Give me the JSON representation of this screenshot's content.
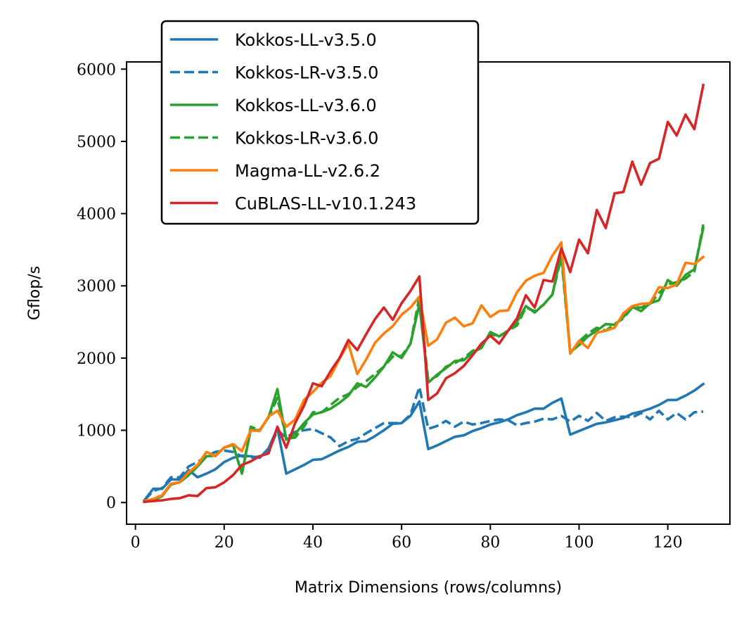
{
  "chart_data": {
    "type": "line",
    "title": "",
    "xlabel": "Matrix Dimensions (rows/columns)",
    "ylabel": "Gflop/s",
    "xlim": [
      -2,
      134
    ],
    "ylim": [
      -300,
      6100
    ],
    "xticks": [
      0,
      20,
      40,
      60,
      80,
      100,
      120
    ],
    "yticks": [
      0,
      1000,
      2000,
      3000,
      4000,
      5000,
      6000
    ],
    "grid": false,
    "legend_position": "top-left (above plot)",
    "x": [
      2,
      4,
      6,
      8,
      10,
      12,
      14,
      16,
      18,
      20,
      22,
      24,
      26,
      28,
      30,
      32,
      34,
      36,
      38,
      40,
      42,
      44,
      46,
      48,
      50,
      52,
      54,
      56,
      58,
      60,
      62,
      64,
      66,
      68,
      70,
      72,
      74,
      76,
      78,
      80,
      82,
      84,
      86,
      88,
      90,
      92,
      94,
      96,
      98,
      100,
      102,
      104,
      106,
      108,
      110,
      112,
      114,
      116,
      118,
      120,
      122,
      124,
      126,
      128
    ],
    "series": [
      {
        "name": "Kokkos-LL-v3.5.0",
        "color": "#1f77b4",
        "dash": "solid",
        "values": [
          30,
          190,
          190,
          320,
          320,
          450,
          350,
          400,
          460,
          560,
          620,
          650,
          640,
          620,
          750,
          1030,
          400,
          460,
          520,
          590,
          600,
          660,
          720,
          770,
          840,
          850,
          920,
          1000,
          1090,
          1100,
          1200,
          1400,
          740,
          790,
          850,
          910,
          930,
          990,
          1030,
          1080,
          1110,
          1150,
          1210,
          1250,
          1300,
          1300,
          1380,
          1440,
          940,
          990,
          1040,
          1090,
          1110,
          1140,
          1170,
          1230,
          1260,
          1300,
          1350,
          1420,
          1420,
          1480,
          1550,
          1640
        ]
      },
      {
        "name": "Kokkos-LR-v3.5.0",
        "color": "#1f77b4",
        "dash": "dashed",
        "values": [
          30,
          160,
          200,
          350,
          350,
          500,
          560,
          640,
          700,
          720,
          700,
          640,
          620,
          640,
          700,
          1000,
          900,
          980,
          1000,
          1020,
          960,
          900,
          780,
          850,
          880,
          960,
          1030,
          1100,
          1100,
          1100,
          1220,
          1600,
          1020,
          1060,
          1130,
          1050,
          1120,
          1080,
          1100,
          1130,
          1150,
          1140,
          1070,
          1100,
          1120,
          1160,
          1150,
          1200,
          1120,
          1200,
          1130,
          1240,
          1130,
          1180,
          1190,
          1180,
          1240,
          1150,
          1270,
          1150,
          1240,
          1150,
          1250,
          1260
        ]
      },
      {
        "name": "Kokkos-LL-v3.6.0",
        "color": "#2ca02c",
        "dash": "solid",
        "values": [
          10,
          30,
          90,
          250,
          280,
          380,
          500,
          640,
          650,
          760,
          800,
          400,
          1010,
          1000,
          1180,
          1570,
          870,
          950,
          1100,
          1220,
          1250,
          1300,
          1380,
          1480,
          1650,
          1600,
          1730,
          1880,
          2080,
          2000,
          2200,
          2750,
          1660,
          1770,
          1860,
          1960,
          1970,
          2080,
          2140,
          2360,
          2300,
          2380,
          2500,
          2720,
          2630,
          2740,
          2880,
          3460,
          2080,
          2180,
          2300,
          2380,
          2470,
          2460,
          2570,
          2710,
          2650,
          2760,
          2800,
          3080,
          3000,
          3150,
          3230,
          3800
        ]
      },
      {
        "name": "Kokkos-LR-v3.6.0",
        "color": "#2ca02c",
        "dash": "dashed",
        "values": [
          10,
          30,
          90,
          250,
          280,
          380,
          500,
          640,
          650,
          760,
          800,
          400,
          1050,
          1000,
          1180,
          1450,
          880,
          900,
          1050,
          1250,
          1250,
          1350,
          1450,
          1500,
          1600,
          1680,
          1780,
          1880,
          2020,
          2030,
          2200,
          2850,
          1690,
          1750,
          1880,
          1930,
          2000,
          2100,
          2160,
          2330,
          2300,
          2380,
          2450,
          2700,
          2650,
          2740,
          2880,
          3400,
          2070,
          2230,
          2340,
          2420,
          2380,
          2470,
          2550,
          2700,
          2700,
          2750,
          2900,
          3020,
          3050,
          3100,
          3200,
          3850
        ]
      },
      {
        "name": "Magma-LL-v2.6.2",
        "color": "#ff7f0e",
        "dash": "solid",
        "values": [
          20,
          50,
          100,
          260,
          280,
          420,
          520,
          700,
          640,
          760,
          810,
          710,
          1000,
          990,
          1190,
          1270,
          1050,
          1150,
          1420,
          1530,
          1660,
          1750,
          1990,
          2200,
          1780,
          1980,
          2210,
          2340,
          2440,
          2600,
          2700,
          2850,
          2170,
          2260,
          2490,
          2560,
          2440,
          2480,
          2730,
          2570,
          2650,
          2660,
          2910,
          3070,
          3140,
          3180,
          3420,
          3600,
          2060,
          2240,
          2140,
          2350,
          2380,
          2420,
          2620,
          2720,
          2750,
          2760,
          2980,
          2970,
          3020,
          3320,
          3300,
          3400
        ]
      },
      {
        "name": "CuBLAS-LL-v10.1.243",
        "color": "#d62728",
        "dash": "solid",
        "values": [
          10,
          20,
          30,
          50,
          60,
          100,
          90,
          200,
          210,
          280,
          380,
          520,
          570,
          640,
          680,
          1050,
          760,
          1100,
          1340,
          1650,
          1610,
          1820,
          2000,
          2250,
          2110,
          2330,
          2540,
          2700,
          2530,
          2760,
          2930,
          3130,
          1420,
          1510,
          1720,
          1790,
          1890,
          2040,
          2200,
          2310,
          2200,
          2380,
          2550,
          2870,
          2700,
          3080,
          3060,
          3520,
          3190,
          3640,
          3450,
          4050,
          3800,
          4280,
          4300,
          4720,
          4400,
          4700,
          4760,
          5270,
          5080,
          5370,
          5170,
          5780
        ]
      }
    ]
  }
}
